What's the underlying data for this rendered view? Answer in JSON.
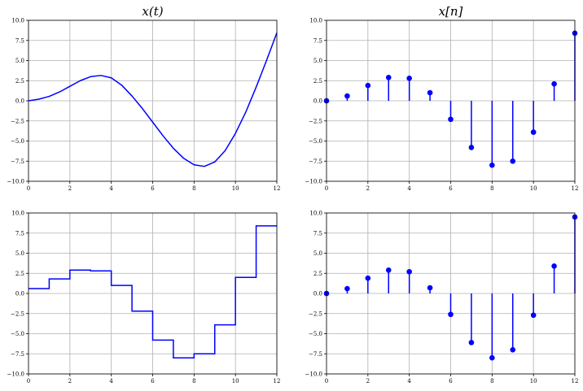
{
  "chart_data": [
    {
      "type": "line",
      "title": "x(t)",
      "xlim": [
        0,
        12
      ],
      "ylim": [
        -10,
        10
      ],
      "xticks": [
        0,
        2,
        4,
        6,
        8,
        10,
        12
      ],
      "yticks": [
        -10,
        -7.5,
        -5,
        -2.5,
        0,
        2.5,
        5,
        7.5,
        10
      ],
      "grid": true,
      "color": "#0000ff",
      "x": [
        0,
        0.5,
        1,
        1.5,
        2,
        2.5,
        3,
        3.5,
        4,
        4.5,
        5,
        5.5,
        6,
        6.5,
        7,
        7.5,
        8,
        8.5,
        9,
        9.5,
        10,
        10.5,
        11,
        11.5,
        12
      ],
      "y": [
        0,
        0.2,
        0.55,
        1.1,
        1.8,
        2.5,
        3.0,
        3.15,
        2.85,
        1.95,
        0.6,
        -0.95,
        -2.65,
        -4.35,
        -5.9,
        -7.15,
        -7.95,
        -8.15,
        -7.6,
        -6.2,
        -4.05,
        -1.4,
        1.7,
        5.0,
        8.45
      ]
    },
    {
      "type": "stem",
      "title": "x[n]",
      "xlim": [
        0,
        12
      ],
      "ylim": [
        -10,
        10
      ],
      "xticks": [
        0,
        2,
        4,
        6,
        8,
        10,
        12
      ],
      "yticks": [
        -10,
        -7.5,
        -5,
        -2.5,
        0,
        2.5,
        5,
        7.5,
        10
      ],
      "grid": true,
      "color": "#0000ff",
      "x": [
        0,
        1,
        2,
        3,
        4,
        5,
        6,
        7,
        8,
        9,
        10,
        11,
        12
      ],
      "y": [
        0,
        0.6,
        1.9,
        2.9,
        2.8,
        1.0,
        -2.3,
        -5.8,
        -8.0,
        -7.5,
        -3.9,
        2.1,
        8.4
      ]
    },
    {
      "type": "step",
      "title": "",
      "xlim": [
        0,
        12
      ],
      "ylim": [
        -10,
        10
      ],
      "xticks": [
        0,
        2,
        4,
        6,
        8,
        10,
        12
      ],
      "yticks": [
        -10,
        -7.5,
        -5,
        -2.5,
        0,
        2.5,
        5,
        7.5,
        10
      ],
      "grid": true,
      "color": "#0000ff",
      "x": [
        0,
        1,
        2,
        3,
        4,
        5,
        6,
        7,
        8,
        9,
        10,
        11,
        12
      ],
      "y": [
        0.6,
        1.8,
        2.9,
        2.8,
        1.0,
        -2.2,
        -5.8,
        -8.0,
        -7.5,
        -3.9,
        2.0,
        8.4,
        8.4
      ]
    },
    {
      "type": "stem",
      "title": "",
      "xlim": [
        0,
        12
      ],
      "ylim": [
        -10,
        10
      ],
      "xticks": [
        0,
        2,
        4,
        6,
        8,
        10,
        12
      ],
      "yticks": [
        -10,
        -7.5,
        -5,
        -2.5,
        0,
        2.5,
        5,
        7.5,
        10
      ],
      "grid": true,
      "color": "#0000ff",
      "x": [
        0,
        1,
        2,
        3,
        4,
        5,
        6,
        7,
        8,
        9,
        10,
        11,
        12
      ],
      "y": [
        0,
        0.6,
        1.9,
        2.9,
        2.7,
        0.7,
        -2.6,
        -6.1,
        -8.0,
        -7.0,
        -2.7,
        3.4,
        9.5
      ]
    }
  ]
}
